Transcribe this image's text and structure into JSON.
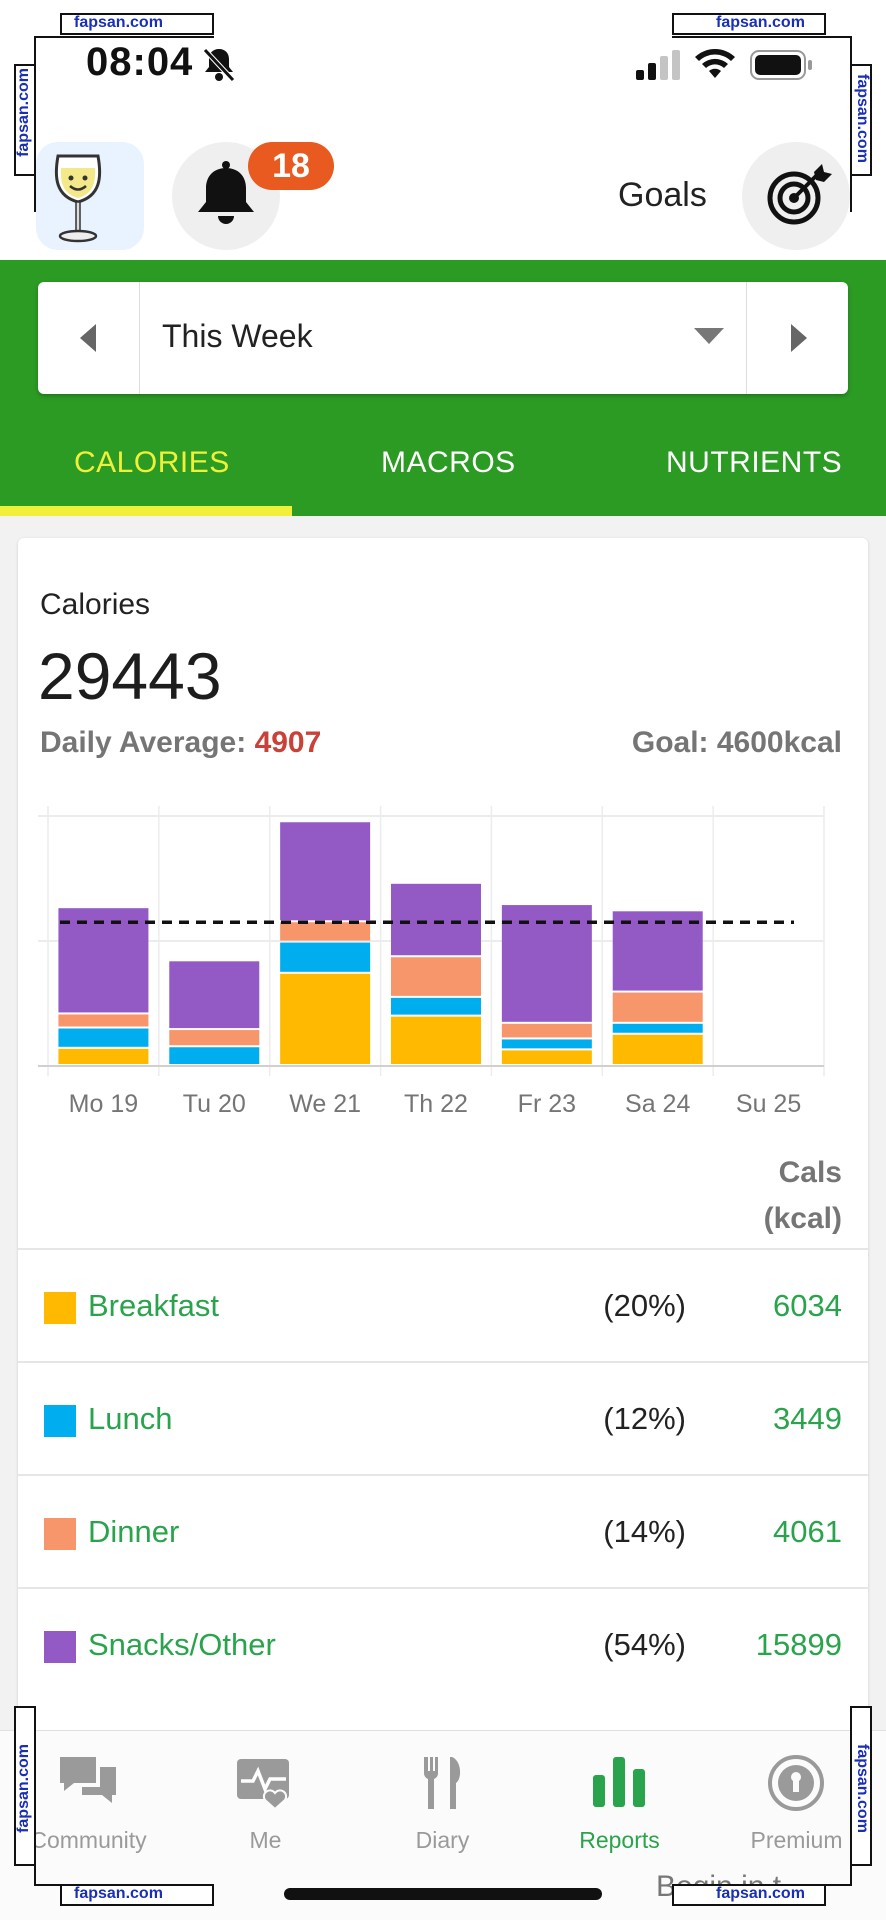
{
  "status_bar": {
    "time": "08:04"
  },
  "header": {
    "notification_count": "18",
    "goals_label": "Goals"
  },
  "period": {
    "label": "This Week"
  },
  "tabs": [
    {
      "label": "CALORIES",
      "active": true
    },
    {
      "label": "MACROS",
      "active": false
    },
    {
      "label": "NUTRIENTS",
      "active": false
    }
  ],
  "card": {
    "title": "Calories",
    "total": "29443",
    "daily_average_label": "Daily Average:",
    "daily_average_value": "4907",
    "goal_text": "Goal: 4600kcal",
    "cals_header_line1": "Cals",
    "cals_header_line2": "(kcal)"
  },
  "chart_data": {
    "type": "bar",
    "stacked": true,
    "categories": [
      "Mo 19",
      "Tu 20",
      "We 21",
      "Th 22",
      "Fr 23",
      "Sa 24",
      "Su 25"
    ],
    "series": [
      {
        "name": "Breakfast",
        "color": "#FFBA00",
        "values": [
          550,
          0,
          2950,
          1580,
          500,
          1000,
          0
        ]
      },
      {
        "name": "Lunch",
        "color": "#00AEEF",
        "values": [
          650,
          600,
          1000,
          600,
          350,
          350,
          0
        ]
      },
      {
        "name": "Dinner",
        "color": "#F7966A",
        "values": [
          450,
          550,
          650,
          1300,
          500,
          1000,
          0
        ]
      },
      {
        "name": "Snacks/Other",
        "color": "#9359C5",
        "values": [
          3400,
          2200,
          3200,
          2350,
          3800,
          2600,
          0
        ]
      }
    ],
    "goal_line": 4600,
    "ylim": [
      0,
      8000
    ],
    "grid": true
  },
  "meals": [
    {
      "name": "Breakfast",
      "percent": "(20%)",
      "value": "6034",
      "color": "#FFBA00"
    },
    {
      "name": "Lunch",
      "percent": "(12%)",
      "value": "3449",
      "color": "#00AEEF"
    },
    {
      "name": "Dinner",
      "percent": "(14%)",
      "value": "4061",
      "color": "#F7966A"
    },
    {
      "name": "Snacks/Other",
      "percent": "(54%)",
      "value": "15899",
      "color": "#9359C5"
    }
  ],
  "nav": [
    {
      "label": "Community",
      "icon": "chat-icon"
    },
    {
      "label": "Me",
      "icon": "heart-monitor-icon"
    },
    {
      "label": "Diary",
      "icon": "fork-knife-icon"
    },
    {
      "label": "Reports",
      "icon": "bar-chart-icon",
      "active": true
    },
    {
      "label": "Premium",
      "icon": "premium-badge-icon"
    }
  ],
  "watermark": "fapsan.com",
  "ghost_text": "Begin  in  t"
}
